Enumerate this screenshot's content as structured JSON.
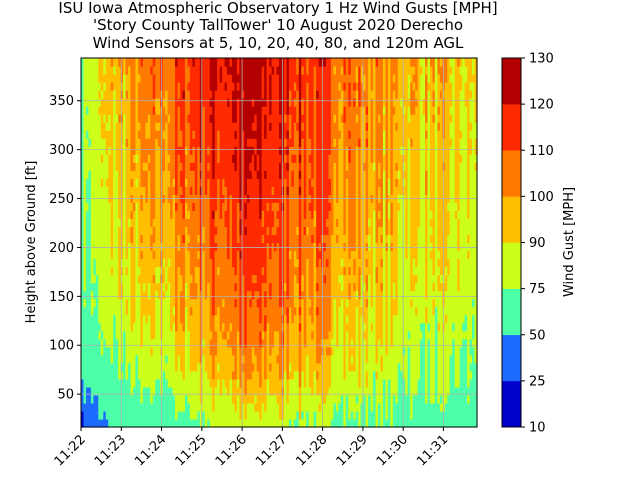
{
  "chart_data": {
    "type": "heatmap",
    "title": [
      "ISU Iowa Atmospheric Observatory 1 Hz Wind Gusts [MPH]",
      "'Story County TallTower' 10 August 2020 Derecho",
      "Wind Sensors at 5, 10, 20, 40, 80, and 120m AGL"
    ],
    "xlabel": "",
    "ylabel": "Height above Ground [ft]",
    "x_tick_labels": [
      "11:22",
      "11:23",
      "11:24",
      "11:25",
      "11:26",
      "11:27",
      "11:28",
      "11:29",
      "11:30",
      "11:31"
    ],
    "x_range": [
      "11:22",
      "11:31:50"
    ],
    "y_ticks": [
      50,
      100,
      150,
      200,
      250,
      300,
      350
    ],
    "ylim": [
      16.4,
      393.7
    ],
    "sensor_heights_ft": [
      16.4,
      32.8,
      65.6,
      131.2,
      262.5,
      393.7
    ],
    "grid": true,
    "colorbar": {
      "label": "Wind Gust [MPH]",
      "levels": [
        10,
        25,
        50,
        75,
        90,
        100,
        110,
        120,
        130
      ],
      "colors": [
        "#0000cd",
        "#1e6cff",
        "#4dffa8",
        "#ccff1a",
        "#ffbf00",
        "#ff7a00",
        "#ff2a00",
        "#b30000"
      ]
    },
    "gust_profile_mph": {
      "times": [
        "11:22",
        "11:23",
        "11:24",
        "11:25",
        "11:26",
        "11:27",
        "11:28",
        "11:29",
        "11:30",
        "11:31",
        "11:31:50"
      ],
      "height_16ft": [
        25,
        60,
        55,
        75,
        82,
        80,
        75,
        70,
        66,
        62,
        60
      ],
      "height_66ft": [
        55,
        72,
        78,
        92,
        98,
        96,
        90,
        85,
        78,
        74,
        70
      ],
      "height_131ft": [
        65,
        85,
        90,
        100,
        108,
        106,
        100,
        92,
        86,
        82,
        78
      ],
      "height_262ft": [
        75,
        92,
        100,
        112,
        117,
        114,
        108,
        100,
        94,
        90,
        86
      ],
      "height_394ft": [
        80,
        98,
        106,
        120,
        124,
        120,
        112,
        105,
        98,
        94,
        90
      ]
    }
  }
}
